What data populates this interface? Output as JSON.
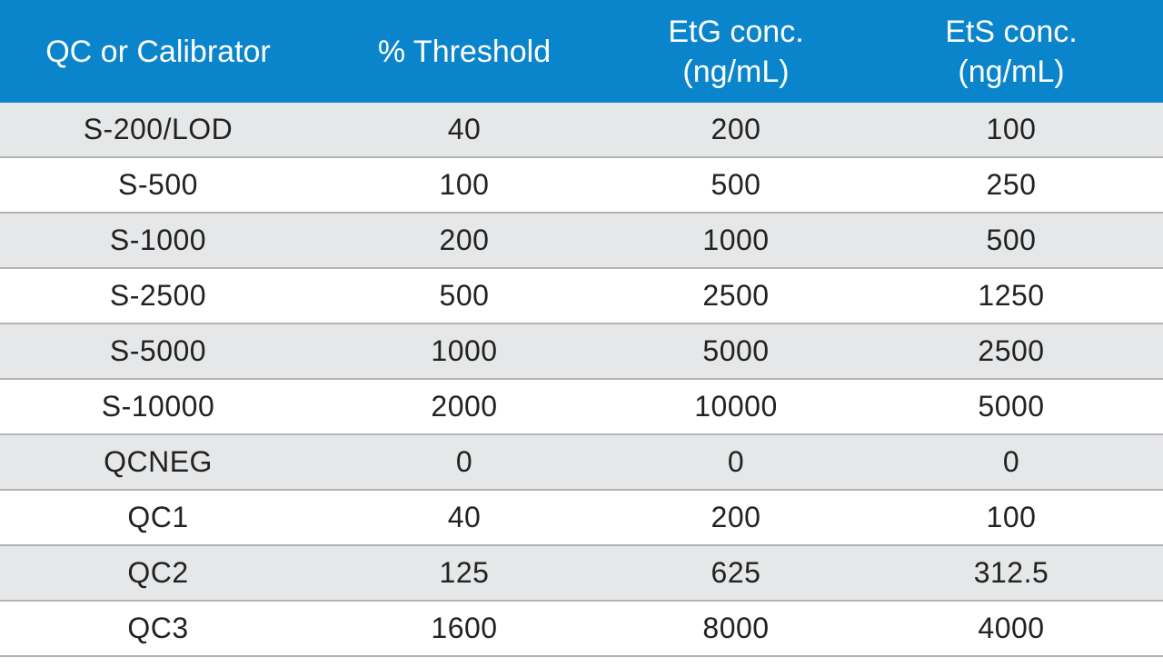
{
  "table": {
    "headers": [
      "QC or Calibrator",
      "% Threshold",
      "EtG conc.\n(ng/mL)",
      "EtS conc.\n(ng/mL)"
    ],
    "rows": [
      [
        "S-200/LOD",
        "40",
        "200",
        "100"
      ],
      [
        "S-500",
        "100",
        "500",
        "250"
      ],
      [
        "S-1000",
        "200",
        "1000",
        "500"
      ],
      [
        "S-2500",
        "500",
        "2500",
        "1250"
      ],
      [
        "S-5000",
        "1000",
        "5000",
        "2500"
      ],
      [
        "S-10000",
        "2000",
        "10000",
        "5000"
      ],
      [
        "QCNEG",
        "0",
        "0",
        "0"
      ],
      [
        "QC1",
        "40",
        "200",
        "100"
      ],
      [
        "QC2",
        "125",
        "625",
        "312.5"
      ],
      [
        "QC3",
        "1600",
        "8000",
        "4000"
      ]
    ],
    "colors": {
      "header_bg": "#0a85cc",
      "header_text": "#ffffff",
      "row_shaded": "#e6e7e8",
      "row_plain": "#ffffff",
      "row_divider": "#b3b3b3"
    }
  }
}
